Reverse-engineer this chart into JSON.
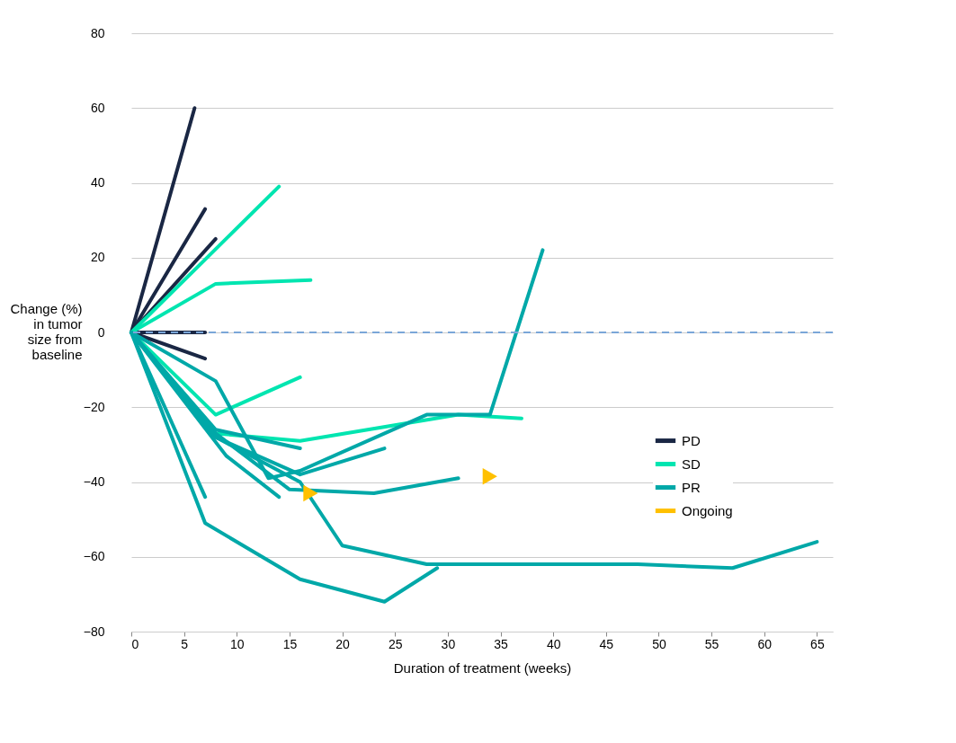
{
  "chart_data": {
    "type": "line",
    "xlabel": "Duration of treatment (weeks)",
    "ylabel": "Change (%) in tumor size from baseline",
    "xlim": [
      0,
      66.5
    ],
    "xticks": [
      0,
      5,
      10,
      15,
      20,
      25,
      30,
      35,
      40,
      45,
      50,
      55,
      60,
      65
    ],
    "ylim": [
      -80,
      80
    ],
    "yticks": [
      -80,
      -60,
      -40,
      -20,
      0,
      20,
      40,
      60,
      80
    ],
    "grid": "y",
    "legend": "right",
    "line_style": "solid",
    "ref_lines": [
      {
        "axis": "y",
        "value": 0,
        "color": "#7aa6d8",
        "line_style": "dashed"
      }
    ],
    "series": [
      {
        "name": "PD",
        "color": "#1a2744",
        "x": [
          0,
          6
        ],
        "values": [
          0,
          60
        ]
      },
      {
        "color": "#1a2744",
        "x": [
          0,
          7
        ],
        "values": [
          0,
          33
        ]
      },
      {
        "color": "#1a2744",
        "x": [
          0,
          8
        ],
        "values": [
          0,
          25
        ]
      },
      {
        "color": "#1a2744",
        "x": [
          0,
          7
        ],
        "values": [
          0,
          0
        ]
      },
      {
        "color": "#1a2744",
        "x": [
          0,
          7
        ],
        "values": [
          0,
          -7
        ]
      },
      {
        "name": "SD",
        "color": "#00e5b0",
        "x": [
          0,
          14
        ],
        "values": [
          0,
          39
        ]
      },
      {
        "color": "#00e5b0",
        "x": [
          0,
          8,
          17
        ],
        "values": [
          0,
          13,
          14
        ]
      },
      {
        "color": "#00e5b0",
        "x": [
          0,
          8,
          16
        ],
        "values": [
          0,
          -22,
          -12
        ]
      },
      {
        "color": "#00e5b0",
        "x": [
          0,
          8,
          16,
          31,
          37
        ],
        "values": [
          0,
          -27,
          -29,
          -22,
          -23
        ]
      },
      {
        "name": "PR",
        "color": "#00a8a8",
        "x": [
          0,
          8,
          13,
          16,
          28,
          34,
          39
        ],
        "values": [
          0,
          -13,
          -39,
          -37,
          -22,
          -22,
          22
        ]
      },
      {
        "color": "#00a8a8",
        "x": [
          0,
          8,
          16,
          24
        ],
        "values": [
          0,
          -28,
          -38,
          -31
        ]
      },
      {
        "color": "#00a8a8",
        "x": [
          0,
          8,
          16
        ],
        "values": [
          0,
          -26,
          -31
        ]
      },
      {
        "color": "#00a8a8",
        "x": [
          0,
          9,
          14
        ],
        "values": [
          0,
          -33,
          -44
        ]
      },
      {
        "color": "#00a8a8",
        "x": [
          0,
          7
        ],
        "values": [
          0,
          -44
        ]
      },
      {
        "color": "#00a8a8",
        "x": [
          0,
          7,
          16,
          24,
          29
        ],
        "values": [
          0,
          -51,
          -66,
          -72,
          -63
        ]
      },
      {
        "color": "#00a8a8",
        "x": [
          0,
          8,
          15,
          23,
          31
        ],
        "values": [
          0,
          -27,
          -42,
          -43,
          -39
        ]
      },
      {
        "color": "#00a8a8",
        "x": [
          0,
          8,
          16,
          20,
          28,
          48,
          57,
          65
        ],
        "values": [
          0,
          -28,
          -40,
          -57,
          -62,
          -62,
          -63,
          -56
        ]
      },
      {
        "name": "Ongoing",
        "color": "#ffc000",
        "type": "scatter",
        "marker": "triangle",
        "x": [
          17,
          34
        ],
        "values": [
          -43,
          -38.5
        ]
      }
    ]
  }
}
